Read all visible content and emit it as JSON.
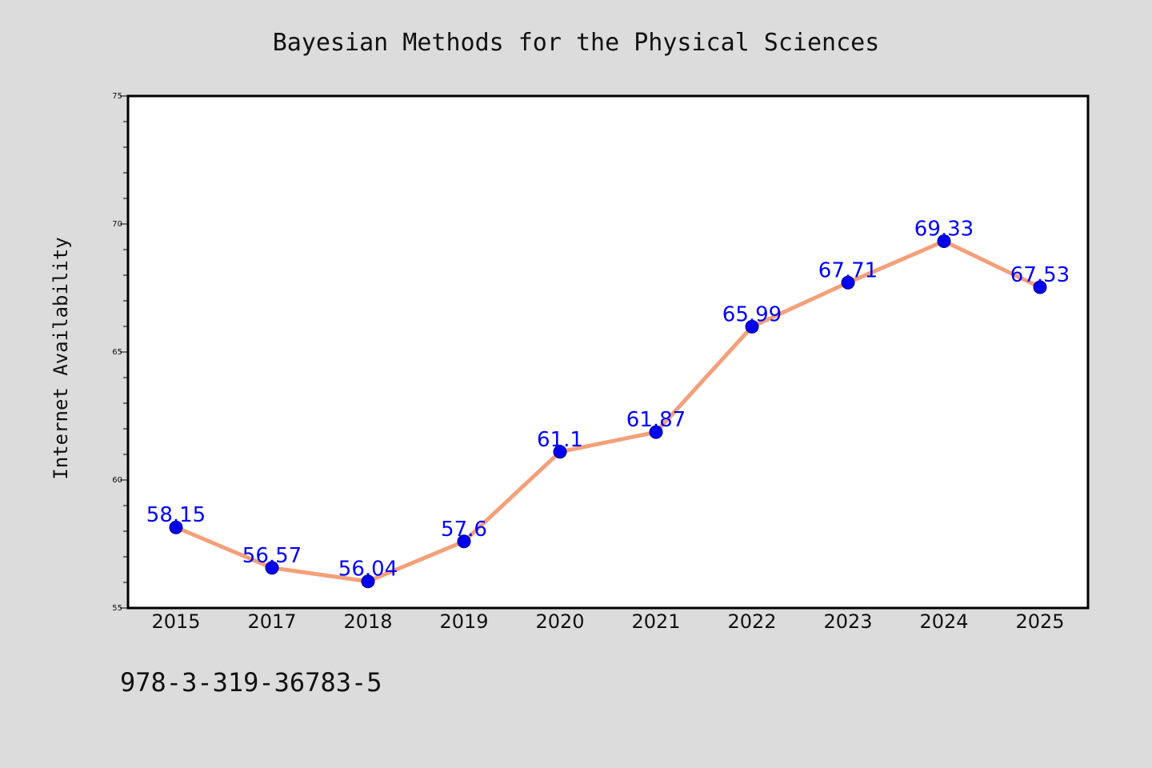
{
  "chart_data": {
    "type": "line",
    "title": "Bayesian Methods for the Physical Sciences",
    "xlabel": "",
    "ylabel": "Internet Availability",
    "categories": [
      "2015",
      "2017",
      "2018",
      "2019",
      "2020",
      "2021",
      "2022",
      "2023",
      "2024",
      "2025"
    ],
    "series": [
      {
        "values": [
          58.15,
          56.57,
          56.04,
          57.6,
          61.1,
          61.87,
          65.99,
          67.71,
          69.33,
          67.53
        ]
      }
    ],
    "data_labels": [
      "58.15",
      "56.57",
      "56.04",
      "57.6",
      "61.1",
      "61.87",
      "65.99",
      "67.71",
      "69.33",
      "67.53"
    ],
    "ylim": [
      55,
      75
    ],
    "yticks": [
      "55",
      "60",
      "65",
      "70",
      "75"
    ],
    "grid": false,
    "legend": "none",
    "colors": {
      "line": "#f4a07a",
      "marker": "#0000ee",
      "marker_edge": "#00008b",
      "data_label": "#0000ff",
      "background": "#dcdcdc",
      "plot_background": "#ffffff"
    }
  },
  "footer": {
    "isbn": "978-3-319-36783-5"
  }
}
